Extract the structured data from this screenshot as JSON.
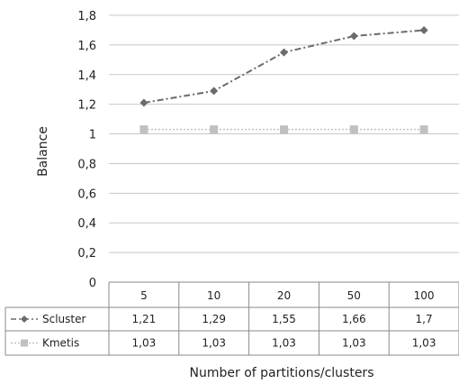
{
  "chart_data": {
    "type": "line",
    "xlabel": "Number of partitions/clusters",
    "ylabel": "Balance",
    "ylim": [
      0,
      1.8
    ],
    "ytick_step": 0.2,
    "yticks": [
      "0",
      "0,2",
      "0,4",
      "0,6",
      "0,8",
      "1",
      "1,2",
      "1,4",
      "1,6",
      "1,8"
    ],
    "categories": [
      "5",
      "10",
      "20",
      "50",
      "100"
    ],
    "grid": true,
    "legend": "data-table",
    "series": [
      {
        "name": "Scluster",
        "values": [
          1.21,
          1.29,
          1.55,
          1.66,
          1.7
        ],
        "labels": [
          "1,21",
          "1,29",
          "1,55",
          "1,66",
          "1,7"
        ],
        "color": "#6b6b6b",
        "marker": "diamond",
        "line": "dash-dot"
      },
      {
        "name": "Kmetis",
        "values": [
          1.03,
          1.03,
          1.03,
          1.03,
          1.03
        ],
        "labels": [
          "1,03",
          "1,03",
          "1,03",
          "1,03",
          "1,03"
        ],
        "color": "#c0c0c0",
        "marker": "square",
        "line": "dotted"
      }
    ]
  }
}
